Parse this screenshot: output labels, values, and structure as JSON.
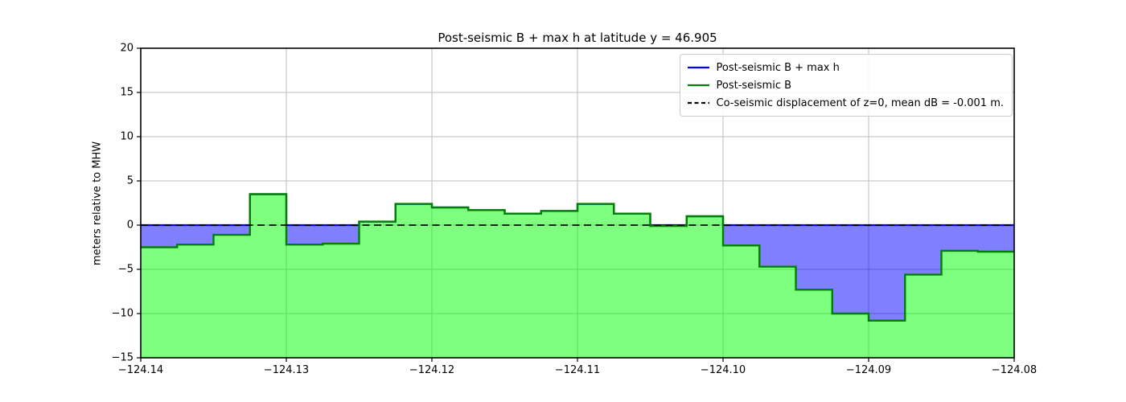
{
  "figure": {
    "background": "#ffffff"
  },
  "chart_data": {
    "type": "area",
    "title": "Post-seismic B + max h at latitude y = 46.905",
    "xlabel": "",
    "ylabel": "meters relative to MHW",
    "xlim": [
      -124.14,
      -124.08
    ],
    "ylim": [
      -15,
      20
    ],
    "xticks": [
      -124.14,
      -124.13,
      -124.12,
      -124.11,
      -124.1,
      -124.09,
      -124.08
    ],
    "xtick_labels": [
      "−124.14",
      "−124.13",
      "−124.12",
      "−124.11",
      "−124.10",
      "−124.09",
      "−124.08"
    ],
    "yticks": [
      20,
      15,
      10,
      5,
      0,
      -5,
      -10,
      -15
    ],
    "ytick_labels": [
      "20",
      "15",
      "10",
      "5",
      "0",
      "−5",
      "−10",
      "−15"
    ],
    "grid": true,
    "grid_color": "#bdbdbd",
    "frame_color": "#000000",
    "step_edges": [
      -124.14,
      -124.1375,
      -124.135,
      -124.1325,
      -124.13,
      -124.1275,
      -124.125,
      -124.1225,
      -124.12,
      -124.1175,
      -124.115,
      -124.1125,
      -124.11,
      -124.1075,
      -124.105,
      -124.1025,
      -124.1,
      -124.0975,
      -124.095,
      -124.0925,
      -124.09,
      -124.0875,
      -124.085,
      -124.0825,
      -124.08
    ],
    "series": [
      {
        "name": "Post-seismic B + max h",
        "color": "#0000ff",
        "line_style": "solid",
        "line_width": 2.2,
        "values": [
          0,
          0,
          0,
          3.5,
          0,
          0,
          0.4,
          2.4,
          2.0,
          1.7,
          1.3,
          1.6,
          2.4,
          1.3,
          0,
          1.0,
          0,
          0,
          0,
          0,
          0,
          0,
          0,
          0
        ]
      },
      {
        "name": "Post-seismic B",
        "color": "#008000",
        "line_style": "solid",
        "line_width": 2.4,
        "fill_color": "#00ff00",
        "fill_opacity": 0.5,
        "fill_to": "ylim_bottom",
        "values": [
          -2.5,
          -2.2,
          -1.1,
          3.5,
          -2.2,
          -2.1,
          0.4,
          2.4,
          2.0,
          1.7,
          1.3,
          1.6,
          2.4,
          1.3,
          -0.1,
          1.0,
          -2.3,
          -4.7,
          -7.3,
          -10.0,
          -10.8,
          -5.6,
          -2.9,
          -3.0
        ]
      },
      {
        "name": "Co-seismic displacement of z=0, mean dB = -0.001 m.",
        "color": "#000000",
        "line_style": "dashed",
        "line_width": 1.7,
        "dash_pattern": [
          9,
          5.5
        ],
        "constant_value": -0.001
      }
    ],
    "fill_between": {
      "upper_series": 0,
      "lower_series": 1,
      "color": "#0000ff",
      "opacity": 0.5
    },
    "legend": {
      "position": "upper right"
    }
  }
}
